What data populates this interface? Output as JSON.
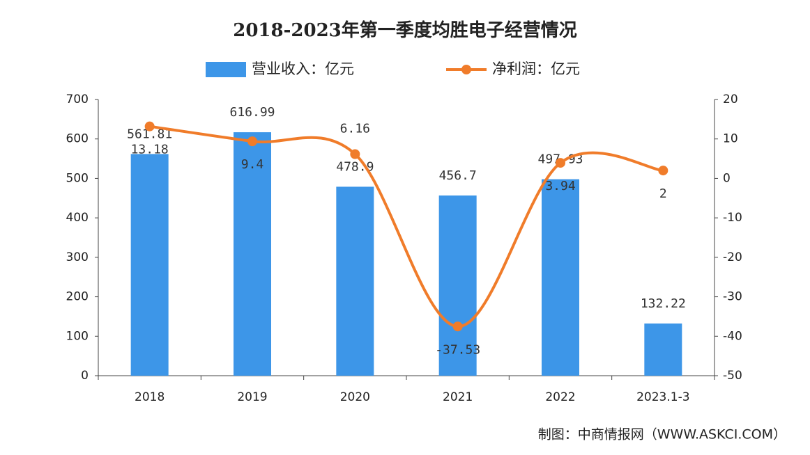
{
  "chart_data": {
    "type": "bar-line",
    "title": "2018-2023年第一季度均胜电子经营情况",
    "source": "制图：中商情报网（WWW.ASKCI.COM）",
    "categories": [
      "2018",
      "2019",
      "2020",
      "2021",
      "2022",
      "2023.1-3"
    ],
    "series": [
      {
        "name": "营业收入：亿元",
        "type": "bar",
        "color": "#3d96e8",
        "values": [
          561.81,
          616.99,
          478.9,
          456.7,
          497.93,
          132.22
        ]
      },
      {
        "name": "净利润：亿元",
        "type": "line",
        "axis": "y2",
        "color": "#f07c2a",
        "values": [
          13.18,
          9.4,
          6.16,
          -37.53,
          3.94,
          2
        ]
      }
    ],
    "ylim": [
      0,
      700
    ],
    "yticks": [
      0,
      100,
      200,
      300,
      400,
      500,
      600,
      700
    ],
    "y2lim": [
      -50,
      20
    ],
    "y2ticks": [
      -50,
      -40,
      -30,
      -20,
      -10,
      0,
      10,
      20
    ]
  }
}
